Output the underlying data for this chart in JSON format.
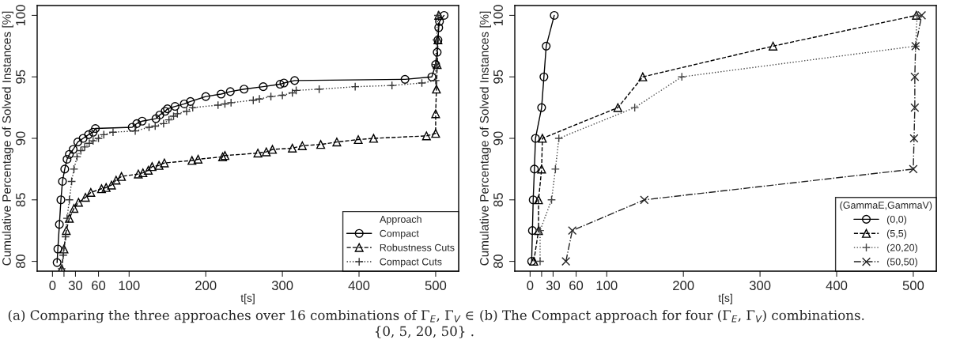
{
  "chart_data": [
    {
      "type": "line",
      "xlabel": "t[s]",
      "ylabel": "Cumulative Percentage of Solved Instances [%]",
      "legend_title": "Approach",
      "legend": "bottom right",
      "grid": false,
      "xlim": [
        -20,
        530
      ],
      "ylim": [
        79.2,
        100.8
      ],
      "xticks": [
        0,
        {
          "value": 15,
          "label": null
        },
        30,
        60,
        100,
        200,
        300,
        400,
        500
      ],
      "yticks": [
        80,
        85,
        90,
        95,
        100
      ],
      "annotations": [
        "(a) Comparing the three approaches over 16 combinations of Γ$_{E}$, Γ$_{V}$ ∈ {0, 5, 20, 50} ."
      ],
      "series": [
        {
          "name": "Compact",
          "color": "#000000",
          "marker": "circle",
          "line_style": "solid",
          "x": [
            6,
            7,
            9,
            11,
            13,
            16,
            19,
            22,
            27,
            33,
            40,
            47,
            53,
            56,
            104,
            110,
            117,
            135,
            140,
            147,
            150,
            160,
            172,
            180,
            200,
            220,
            232,
            250,
            275,
            297,
            302,
            316,
            460,
            495,
            500,
            502,
            503,
            504,
            505,
            511
          ],
          "values": [
            79.9,
            81,
            83,
            85,
            86.5,
            87.5,
            88.3,
            88.7,
            89.1,
            89.7,
            90,
            90.3,
            90.5,
            90.8,
            90.9,
            91.2,
            91.4,
            91.6,
            91.9,
            92.2,
            92.4,
            92.6,
            92.8,
            93,
            93.4,
            93.6,
            93.8,
            94,
            94.2,
            94.4,
            94.5,
            94.7,
            94.8,
            95,
            96,
            97,
            98,
            99,
            99.5,
            100
          ]
        },
        {
          "name": "Robustness Cuts",
          "color": "#000000",
          "marker": "triangle",
          "line_style": "dashed",
          "x": [
            12,
            15,
            18,
            22,
            28,
            34,
            43,
            50,
            64,
            70,
            77,
            83,
            90,
            112,
            118,
            125,
            130,
            139,
            146,
            182,
            190,
            222,
            225,
            268,
            279,
            287,
            313,
            326,
            350,
            371,
            399,
            419,
            488,
            500,
            500,
            501,
            502,
            503,
            504
          ],
          "values": [
            79.4,
            81,
            82.5,
            83.5,
            84.3,
            84.8,
            85.2,
            85.6,
            85.9,
            86,
            86.2,
            86.6,
            86.9,
            87.1,
            87.2,
            87.4,
            87.7,
            87.8,
            88,
            88.2,
            88.3,
            88.5,
            88.6,
            88.8,
            88.9,
            89.1,
            89.2,
            89.4,
            89.5,
            89.7,
            89.9,
            90,
            90.2,
            90.4,
            92,
            94,
            96,
            98,
            100
          ]
        },
        {
          "name": "Compact Cuts",
          "color": "#333333",
          "marker": "plus",
          "line_style": "dotted",
          "x": [
            12,
            14,
            17,
            19,
            22,
            25,
            28,
            32,
            37,
            42,
            48,
            53,
            60,
            67,
            79,
            108,
            126,
            134,
            145,
            152,
            158,
            163,
            175,
            183,
            216,
            225,
            233,
            262,
            270,
            285,
            300,
            313,
            318,
            348,
            395,
            443,
            482,
            500,
            500,
            501,
            503
          ],
          "values": [
            79.4,
            80.5,
            82,
            83.5,
            85,
            86.5,
            87.5,
            88.5,
            89,
            89.3,
            89.6,
            89.8,
            90,
            90.3,
            90.5,
            90.6,
            90.9,
            91,
            91.2,
            91.5,
            91.8,
            92,
            92.2,
            92.5,
            92.7,
            92.8,
            92.9,
            93.1,
            93.2,
            93.4,
            93.5,
            93.7,
            93.9,
            94,
            94.2,
            94.3,
            94.5,
            94.7,
            96,
            98,
            100
          ]
        }
      ]
    },
    {
      "type": "line",
      "xlabel": "t[s]",
      "ylabel": "Cumulative Percentage of Solved Instances [%]",
      "legend_title": "(GammaE,GammaV)",
      "legend": "bottom right",
      "grid": false,
      "xlim": [
        -20,
        530
      ],
      "ylim": [
        79.2,
        100.8
      ],
      "xticks": [
        0,
        {
          "value": 15,
          "label": null
        },
        30,
        60,
        100,
        200,
        300,
        400,
        500
      ],
      "yticks": [
        80,
        85,
        90,
        95,
        100
      ],
      "annotations": [
        "(b) The Compact approach for four (Γ$_{E}$, Γ$_{V}$) combinations."
      ],
      "series": [
        {
          "name": "(0,0)",
          "color": "#000000",
          "marker": "circle",
          "line_style": "solid",
          "x": [
            2,
            3,
            4,
            5.6,
            7,
            15,
            18,
            21,
            31.5
          ],
          "values": [
            80,
            82.5,
            85,
            87.5,
            90,
            92.5,
            95,
            97.5,
            100
          ]
        },
        {
          "name": "(5,5)",
          "color": "#000000",
          "marker": "triangle",
          "line_style": "dashed",
          "x": [
            4.8,
            11,
            11,
            15,
            16,
            114.5,
            147,
            317,
            504
          ],
          "values": [
            80,
            82.5,
            85,
            87.5,
            90,
            92.5,
            95,
            97.5,
            100
          ]
        },
        {
          "name": "(20,20)",
          "color": "#444444",
          "marker": "plus",
          "line_style": "dotted",
          "x": [
            13,
            13,
            28,
            33,
            37.5,
            136.5,
            198,
            503,
            505
          ],
          "values": [
            80,
            82.5,
            85,
            87.5,
            90,
            92.5,
            95,
            97.5,
            100
          ]
        },
        {
          "name": "(50,50)",
          "color": "#222222",
          "marker": "cross",
          "line_style": "dashdot",
          "x": [
            46.7,
            55,
            149,
            500,
            501,
            502,
            502,
            503,
            511
          ],
          "values": [
            80,
            82.5,
            85,
            87.5,
            90,
            92.5,
            95,
            97.5,
            100
          ]
        }
      ]
    }
  ]
}
